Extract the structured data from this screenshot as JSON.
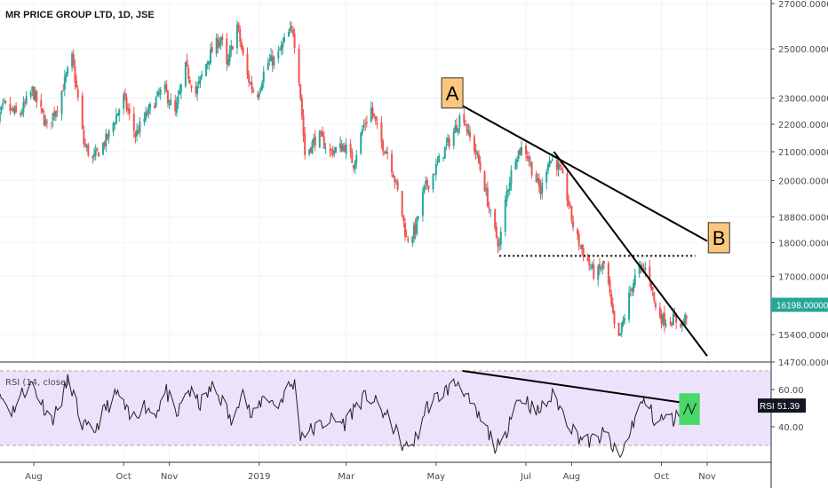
{
  "colors": {
    "up": "#26a69a",
    "down": "#ef5350",
    "wick_up": "#26a69a",
    "wick_down": "#ef5350",
    "last_price_bg": "#26a69a",
    "rsi_band": "#ede2fb",
    "rsi_line": "#222222",
    "annotation_box": "#fbc67e",
    "highlight_box": "#49d86a",
    "trendline": "#000000"
  },
  "chart_data": [
    {
      "type": "candlestick",
      "title": "MR PRICE GROUP LTD, 1D, JSE",
      "y_scale": "log",
      "yticks": [
        "27000.00000",
        "25000.00000",
        "23000.00000",
        "22000.00000",
        "21000.00000",
        "20000.00000",
        "18800.00000",
        "18000.00000",
        "17000.00000",
        "16198.00000",
        "15400.00000",
        "14700.00000"
      ],
      "ytick_values": [
        27000,
        25000,
        23000,
        22000,
        21000,
        20000,
        18800,
        18000,
        17000,
        16198,
        15400,
        14700
      ],
      "last_price": "16198.00000",
      "x_labels": [
        "Aug",
        "Oct",
        "Nov",
        "2019",
        "Mar",
        "May",
        "Jul",
        "Aug",
        "Oct",
        "Nov"
      ],
      "x_label_dates": [
        "2018-08-01",
        "2018-10-01",
        "2018-11-01",
        "2019-01-01",
        "2019-03-01",
        "2019-05-01",
        "2019-07-01",
        "2019-08-01",
        "2019-10-01",
        "2019-11-01"
      ],
      "price_path": [
        [
          "2018-07-03",
          21700
        ],
        [
          "2018-07-12",
          22700
        ],
        [
          "2018-07-22",
          22300
        ],
        [
          "2018-07-31",
          23300
        ],
        [
          "2018-08-10",
          21900
        ],
        [
          "2018-08-17",
          22700
        ],
        [
          "2018-08-27",
          24600
        ],
        [
          "2018-09-04",
          21300
        ],
        [
          "2018-09-10",
          20700
        ],
        [
          "2018-09-20",
          21500
        ],
        [
          "2018-10-01",
          23000
        ],
        [
          "2018-10-09",
          21600
        ],
        [
          "2018-10-17",
          22400
        ],
        [
          "2018-10-28",
          23400
        ],
        [
          "2018-11-05",
          22400
        ],
        [
          "2018-11-12",
          24200
        ],
        [
          "2018-11-19",
          23200
        ],
        [
          "2018-11-28",
          24700
        ],
        [
          "2018-12-06",
          25500
        ],
        [
          "2018-12-10",
          24200
        ],
        [
          "2018-12-17",
          26000
        ],
        [
          "2018-12-23",
          24000
        ],
        [
          "2018-12-30",
          23000
        ],
        [
          "2019-01-06",
          24400
        ],
        [
          "2019-01-13",
          24600
        ],
        [
          "2019-01-20",
          25600
        ],
        [
          "2019-01-24",
          25800
        ],
        [
          "2019-01-28",
          23800
        ],
        [
          "2019-02-01",
          20900
        ],
        [
          "2019-02-10",
          21600
        ],
        [
          "2019-02-18",
          21000
        ],
        [
          "2019-02-28",
          21200
        ],
        [
          "2019-03-06",
          20600
        ],
        [
          "2019-03-12",
          21800
        ],
        [
          "2019-03-18",
          22600
        ],
        [
          "2019-03-24",
          21400
        ],
        [
          "2019-03-30",
          20900
        ],
        [
          "2019-04-06",
          19400
        ],
        [
          "2019-04-11",
          18100
        ],
        [
          "2019-04-17",
          18400
        ],
        [
          "2019-04-23",
          19700
        ],
        [
          "2019-04-28",
          20100
        ],
        [
          "2019-05-05",
          20900
        ],
        [
          "2019-05-13",
          21700
        ],
        [
          "2019-05-19",
          22500
        ],
        [
          "2019-05-23",
          21600
        ],
        [
          "2019-05-28",
          21000
        ],
        [
          "2019-06-03",
          19800
        ],
        [
          "2019-06-08",
          18600
        ],
        [
          "2019-06-13",
          17900
        ],
        [
          "2019-06-18",
          19600
        ],
        [
          "2019-06-24",
          20900
        ],
        [
          "2019-06-30",
          21200
        ],
        [
          "2019-07-05",
          20400
        ],
        [
          "2019-07-11",
          19600
        ],
        [
          "2019-07-16",
          20700
        ],
        [
          "2019-07-21",
          20700
        ],
        [
          "2019-07-27",
          19900
        ],
        [
          "2019-08-03",
          18300
        ],
        [
          "2019-08-10",
          17600
        ],
        [
          "2019-08-17",
          17000
        ],
        [
          "2019-08-24",
          17400
        ],
        [
          "2019-08-28",
          16100
        ],
        [
          "2019-09-01",
          15100
        ],
        [
          "2019-09-06",
          15900
        ],
        [
          "2019-09-10",
          16600
        ],
        [
          "2019-09-15",
          17200
        ],
        [
          "2019-09-22",
          17200
        ],
        [
          "2019-09-27",
          16100
        ],
        [
          "2019-10-02",
          15800
        ],
        [
          "2019-10-09",
          15800
        ],
        [
          "2019-10-16",
          15700
        ],
        [
          "2019-10-20",
          16198
        ]
      ],
      "support_line": {
        "from": [
          "2019-06-13",
          17600
        ],
        "to": [
          "2019-10-24",
          17600
        ]
      },
      "trendlines": [
        {
          "from": [
            "2019-05-19",
            22700
          ],
          "to": [
            "2019-11-01",
            18050
          ]
        },
        {
          "from": [
            "2019-07-20",
            21000
          ],
          "to": [
            "2019-11-01",
            14850
          ]
        }
      ],
      "annotations": [
        {
          "label": "A",
          "date": "2019-05-12",
          "value": 23200
        },
        {
          "label": "B",
          "date": "2019-11-09",
          "value": 18150
        }
      ]
    },
    {
      "type": "line",
      "title": "RSI (14, close)",
      "ylim": [
        20,
        75
      ],
      "yticks": [
        "60.00",
        "40.00"
      ],
      "ytick_values": [
        60,
        40
      ],
      "band": [
        30,
        70
      ],
      "badge_name": "RSI",
      "last_value": "51.39",
      "series_path": [
        [
          "2018-07-03",
          45
        ],
        [
          "2018-07-10",
          56
        ],
        [
          "2018-07-17",
          48
        ],
        [
          "2018-07-24",
          58
        ],
        [
          "2018-07-31",
          63
        ],
        [
          "2018-08-07",
          52
        ],
        [
          "2018-08-13",
          44
        ],
        [
          "2018-08-18",
          50
        ],
        [
          "2018-08-25",
          67
        ],
        [
          "2018-09-02",
          42
        ],
        [
          "2018-09-10",
          36
        ],
        [
          "2018-09-18",
          49
        ],
        [
          "2018-09-27",
          58
        ],
        [
          "2018-10-06",
          43
        ],
        [
          "2018-10-14",
          52
        ],
        [
          "2018-10-22",
          47
        ],
        [
          "2018-10-30",
          59
        ],
        [
          "2018-11-06",
          45
        ],
        [
          "2018-11-13",
          60
        ],
        [
          "2018-11-22",
          52
        ],
        [
          "2018-11-30",
          61
        ],
        [
          "2018-12-08",
          53
        ],
        [
          "2018-12-14",
          40
        ],
        [
          "2018-12-20",
          62
        ],
        [
          "2018-12-27",
          44
        ],
        [
          "2019-01-05",
          58
        ],
        [
          "2019-01-13",
          50
        ],
        [
          "2019-01-20",
          61
        ],
        [
          "2019-01-25",
          63
        ],
        [
          "2019-01-29",
          36
        ],
        [
          "2019-02-08",
          39
        ],
        [
          "2019-02-18",
          44
        ],
        [
          "2019-02-28",
          42
        ],
        [
          "2019-03-08",
          52
        ],
        [
          "2019-03-16",
          57
        ],
        [
          "2019-03-25",
          49
        ],
        [
          "2019-04-02",
          40
        ],
        [
          "2019-04-10",
          28
        ],
        [
          "2019-04-18",
          34
        ],
        [
          "2019-04-24",
          50
        ],
        [
          "2019-05-02",
          56
        ],
        [
          "2019-05-10",
          61
        ],
        [
          "2019-05-18",
          65
        ],
        [
          "2019-05-22",
          55
        ],
        [
          "2019-05-28",
          47
        ],
        [
          "2019-06-04",
          39
        ],
        [
          "2019-06-10",
          30
        ],
        [
          "2019-06-15",
          28
        ],
        [
          "2019-06-22",
          52
        ],
        [
          "2019-06-30",
          56
        ],
        [
          "2019-07-08",
          47
        ],
        [
          "2019-07-14",
          52
        ],
        [
          "2019-07-20",
          57
        ],
        [
          "2019-07-27",
          46
        ],
        [
          "2019-08-04",
          36
        ],
        [
          "2019-08-12",
          32
        ],
        [
          "2019-08-19",
          34
        ],
        [
          "2019-08-25",
          37
        ],
        [
          "2019-08-29",
          28
        ],
        [
          "2019-09-03",
          23
        ],
        [
          "2019-09-09",
          36
        ],
        [
          "2019-09-15",
          50
        ],
        [
          "2019-09-21",
          54
        ],
        [
          "2019-09-27",
          42
        ],
        [
          "2019-10-03",
          45
        ],
        [
          "2019-10-09",
          44
        ],
        [
          "2019-10-15",
          47
        ],
        [
          "2019-10-20",
          51.39
        ]
      ],
      "trendline": {
        "from": [
          "2019-05-19",
          70
        ],
        "to": [
          "2019-10-24",
          52
        ]
      },
      "highlight": {
        "from": [
          "2019-10-13",
          58
        ],
        "to": [
          "2019-10-27",
          41
        ]
      }
    }
  ]
}
